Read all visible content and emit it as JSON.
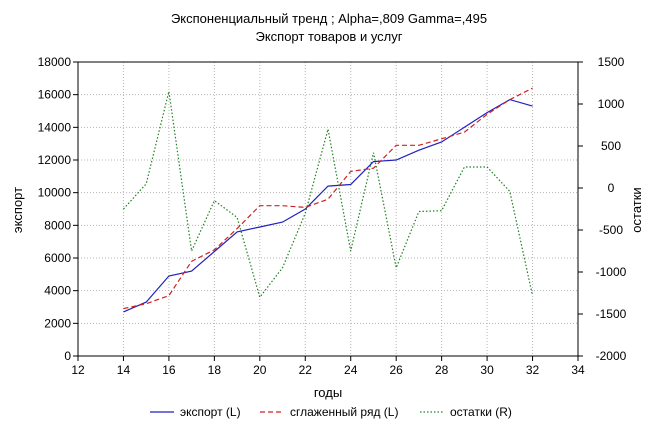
{
  "chart_data": {
    "type": "line",
    "title": "Экспоненциальный тренд ; Alpha=,809 Gamma=,495",
    "subtitle": "Экспорт товаров и услуг",
    "xlabel": "годы",
    "ylabel": "экспорт",
    "y2label": "остатки",
    "xlim": [
      12,
      34
    ],
    "ylim": [
      0,
      18000
    ],
    "y2lim": [
      -2000,
      1500
    ],
    "xticks": [
      "12",
      "14",
      "16",
      "18",
      "20",
      "22",
      "24",
      "26",
      "28",
      "30",
      "32",
      "34"
    ],
    "yticks": [
      "0",
      "2000",
      "4000",
      "6000",
      "8000",
      "10000",
      "12000",
      "14000",
      "16000",
      "18000"
    ],
    "y2ticks": [
      "-2000",
      "-1500",
      "-1000",
      "-500",
      "0",
      "500",
      "1000",
      "1500"
    ],
    "grid": true,
    "legend_position": "bottom",
    "x": [
      14,
      15,
      16,
      17,
      18,
      19,
      20,
      21,
      22,
      23,
      24,
      25,
      26,
      27,
      28,
      29,
      30,
      31,
      32
    ],
    "series": [
      {
        "name": "экспорт (L)",
        "axis": "left",
        "color": "#2020c0",
        "style": "solid",
        "values": [
          2700,
          3300,
          4900,
          5200,
          6400,
          7600,
          7900,
          8200,
          9000,
          10400,
          10500,
          11900,
          12000,
          12600,
          13100,
          14000,
          14900,
          15700,
          15300
        ]
      },
      {
        "name": "сглаженный ряд (L)",
        "axis": "left",
        "color": "#d02020",
        "style": "dashed",
        "values": [
          2900,
          3200,
          3700,
          5800,
          6500,
          7800,
          9200,
          9200,
          9100,
          9600,
          11300,
          11500,
          12900,
          12900,
          13300,
          13700,
          14800,
          15700,
          16400
        ]
      },
      {
        "name": "остатки (R)",
        "axis": "right",
        "color": "#208020",
        "style": "dotted",
        "values": [
          -250,
          50,
          1150,
          -750,
          -150,
          -350,
          -1300,
          -950,
          -300,
          700,
          -750,
          420,
          -950,
          -280,
          -270,
          250,
          250,
          -40,
          -1280
        ]
      }
    ]
  }
}
